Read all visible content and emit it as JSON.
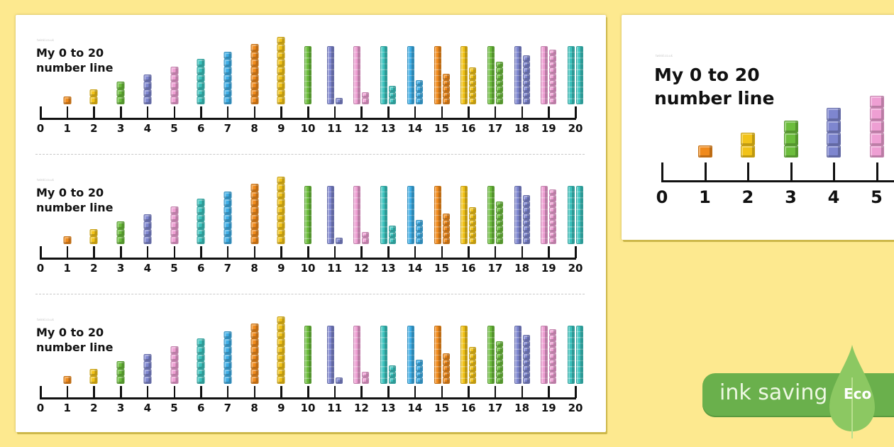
{
  "main_page": {
    "watermark": "twinkl.co.uk",
    "strips": [
      {
        "title": "My 0 to 20\nnumber line"
      },
      {
        "title": "My 0 to 20\nnumber line"
      },
      {
        "title": "My 0 to 20\nnumber line"
      }
    ]
  },
  "preview_page": {
    "watermark": "twinkl.co.uk",
    "title": "My 0 to 20\nnumber line",
    "visible_labels": [
      "0",
      "1",
      "2",
      "3",
      "4",
      "5"
    ]
  },
  "eco_badge": {
    "text": "ink saving",
    "label": "Eco",
    "pill_color": "#6ab04c",
    "leaf_color": "#8cc862"
  },
  "number_line": {
    "labels": [
      "0",
      "1",
      "2",
      "3",
      "4",
      "5",
      "6",
      "7",
      "8",
      "9",
      "10",
      "11",
      "12",
      "13",
      "14",
      "15",
      "16",
      "17",
      "18",
      "19",
      "20"
    ],
    "columns": [
      {
        "n": 0,
        "tens": 0,
        "ones": 0,
        "color": ""
      },
      {
        "n": 1,
        "tens": 0,
        "ones": 1,
        "color": "#f08a1c"
      },
      {
        "n": 2,
        "tens": 0,
        "ones": 2,
        "color": "#f2c318"
      },
      {
        "n": 3,
        "tens": 0,
        "ones": 3,
        "color": "#6cbd3c"
      },
      {
        "n": 4,
        "tens": 0,
        "ones": 4,
        "color": "#7e86cf"
      },
      {
        "n": 5,
        "tens": 0,
        "ones": 5,
        "color": "#ee9fd3"
      },
      {
        "n": 6,
        "tens": 0,
        "ones": 6,
        "color": "#3cc3be"
      },
      {
        "n": 7,
        "tens": 0,
        "ones": 7,
        "color": "#3eaee6"
      },
      {
        "n": 8,
        "tens": 0,
        "ones": 8,
        "color": "#f08a1c"
      },
      {
        "n": 9,
        "tens": 0,
        "ones": 9,
        "color": "#f2c318"
      },
      {
        "n": 10,
        "tens": 1,
        "ones": 0,
        "color": "#6cbd3c"
      },
      {
        "n": 11,
        "tens": 1,
        "ones": 1,
        "color": "#7e86cf"
      },
      {
        "n": 12,
        "tens": 1,
        "ones": 2,
        "color": "#ee9fd3"
      },
      {
        "n": 13,
        "tens": 1,
        "ones": 3,
        "color": "#3cc3be"
      },
      {
        "n": 14,
        "tens": 1,
        "ones": 4,
        "color": "#3eaee6"
      },
      {
        "n": 15,
        "tens": 1,
        "ones": 5,
        "color": "#f08a1c"
      },
      {
        "n": 16,
        "tens": 1,
        "ones": 6,
        "color": "#f2c318"
      },
      {
        "n": 17,
        "tens": 1,
        "ones": 7,
        "color": "#6cbd3c"
      },
      {
        "n": 18,
        "tens": 1,
        "ones": 8,
        "color": "#7e86cf"
      },
      {
        "n": 19,
        "tens": 1,
        "ones": 9,
        "color": "#ee9fd3"
      },
      {
        "n": 20,
        "tens": 2,
        "ones": 0,
        "color": "#3cc3be"
      }
    ]
  }
}
